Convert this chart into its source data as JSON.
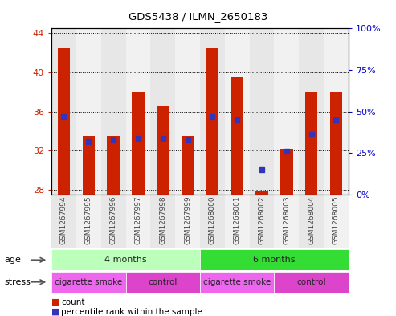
{
  "title": "GDS5438 / ILMN_2650183",
  "samples": [
    "GSM1267994",
    "GSM1267995",
    "GSM1267996",
    "GSM1267997",
    "GSM1267998",
    "GSM1267999",
    "GSM1268000",
    "GSM1268001",
    "GSM1268002",
    "GSM1268003",
    "GSM1268004",
    "GSM1268005"
  ],
  "counts": [
    42.5,
    33.5,
    33.5,
    38.0,
    36.5,
    33.5,
    42.5,
    39.5,
    27.8,
    32.2,
    38.0,
    38.0
  ],
  "percentile_ranks": [
    47,
    32,
    33,
    34,
    34,
    33,
    47,
    45,
    15,
    26,
    36,
    45
  ],
  "ylim_left": [
    27.5,
    44.5
  ],
  "ylim_right": [
    0,
    100
  ],
  "yticks_left": [
    28,
    32,
    36,
    40,
    44
  ],
  "yticks_right": [
    0,
    25,
    50,
    75,
    100
  ],
  "bar_color": "#CC2200",
  "dot_color": "#3333BB",
  "background_plot": "#FFFFFF",
  "age_groups": [
    {
      "label": "4 months",
      "start": 0,
      "end": 6,
      "color": "#BBFFBB"
    },
    {
      "label": "6 months",
      "start": 6,
      "end": 12,
      "color": "#33DD33"
    }
  ],
  "stress_groups": [
    {
      "label": "cigarette smoke",
      "start": 0,
      "end": 3,
      "color": "#EE66EE"
    },
    {
      "label": "control",
      "start": 3,
      "end": 6,
      "color": "#DD44CC"
    },
    {
      "label": "cigarette smoke",
      "start": 6,
      "end": 9,
      "color": "#EE66EE"
    },
    {
      "label": "control",
      "start": 9,
      "end": 12,
      "color": "#DD44CC"
    }
  ],
  "bar_width": 0.5,
  "left_axis_color": "#CC2200",
  "right_axis_color": "#0000CC",
  "col_bg_even": "#D8D8D8",
  "col_bg_odd": "#E8E8E8"
}
